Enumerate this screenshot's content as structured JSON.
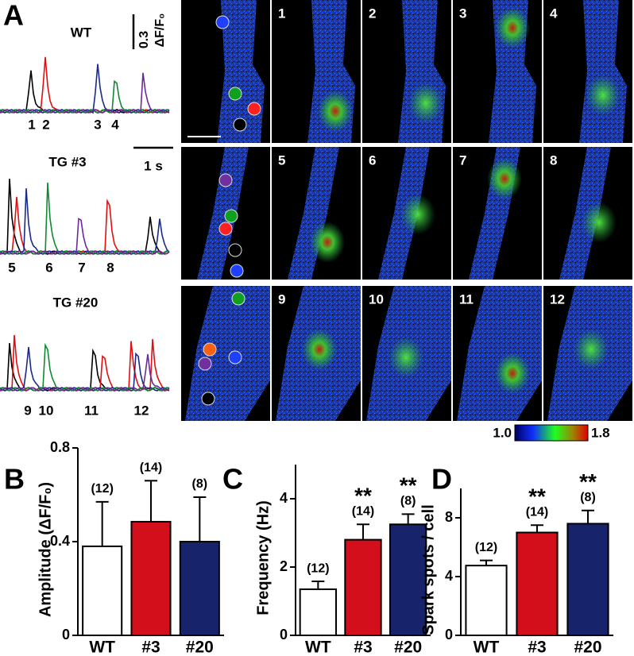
{
  "panel_a": {
    "label": "A",
    "rows": [
      {
        "title": "WT",
        "trace_labels": [
          "1",
          "2",
          "3",
          "4"
        ]
      },
      {
        "title": "TG #3",
        "trace_labels": [
          "5",
          "6",
          "7",
          "8"
        ]
      },
      {
        "title": "TG #20",
        "trace_labels": [
          "9",
          "10",
          "11",
          "12"
        ]
      }
    ],
    "scale_bar_y": "0.3",
    "scale_bar_y_unit": "ΔF/F₀",
    "scale_bar_x": "1 s",
    "colorbar_labels": [
      "1.0",
      "1.8"
    ]
  },
  "chart_data": [
    {
      "type": "bar",
      "panel_label": "B",
      "ylabel": "Amplitude (ΔF/F₀)",
      "categories": [
        "WT",
        "#3",
        "#20"
      ],
      "values": [
        0.38,
        0.485,
        0.4
      ],
      "errors": [
        0.19,
        0.175,
        0.19
      ],
      "colors": [
        "#ffffff",
        "#d40f1c",
        "#17236b"
      ],
      "annotations": [
        "(12)",
        "(14)",
        "(8)"
      ],
      "significance": [
        null,
        null,
        null
      ],
      "ylim": [
        0,
        0.8
      ],
      "yticks": [
        0,
        0.4,
        0.8
      ]
    },
    {
      "type": "bar",
      "panel_label": "C",
      "ylabel": "Frequency (Hz)",
      "categories": [
        "WT",
        "#3",
        "#20"
      ],
      "values": [
        1.35,
        2.8,
        3.25
      ],
      "errors": [
        0.23,
        0.45,
        0.3
      ],
      "colors": [
        "#ffffff",
        "#d40f1c",
        "#17236b"
      ],
      "annotations": [
        "(12)",
        "(14)",
        "(8)"
      ],
      "significance": [
        null,
        "**",
        "**"
      ],
      "ylim": [
        0,
        5
      ],
      "yticks": [
        0,
        2,
        4
      ]
    },
    {
      "type": "bar",
      "panel_label": "D",
      "ylabel": "Spark spots / cell",
      "categories": [
        "WT",
        "#3",
        "#20"
      ],
      "values": [
        4.75,
        7.0,
        7.6
      ],
      "errors": [
        0.35,
        0.5,
        0.9
      ],
      "colors": [
        "#ffffff",
        "#d40f1c",
        "#17236b"
      ],
      "annotations": [
        "(12)",
        "(14)",
        "(8)"
      ],
      "significance": [
        null,
        "**",
        "**"
      ],
      "ylim": [
        0,
        10
      ],
      "yticks": [
        0,
        4,
        8
      ]
    }
  ]
}
